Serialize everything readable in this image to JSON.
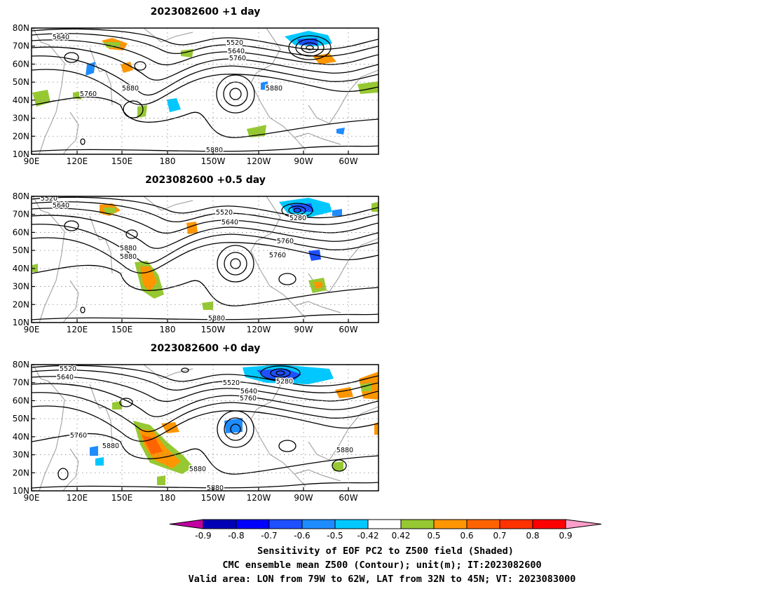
{
  "panels": [
    {
      "title": "2023082600  +1 day",
      "contour_labels": [
        "5640",
        "5520",
        "5640",
        "5760",
        "5760",
        "5880",
        "5880",
        "5880"
      ]
    },
    {
      "title": "2023082600  +0.5 day",
      "contour_labels": [
        "5520",
        "5640",
        "5520",
        "5640",
        "5280",
        "5760",
        "5880",
        "5760",
        "5880",
        "5880"
      ]
    },
    {
      "title": "2023082600  +0 day",
      "contour_labels": [
        "5520",
        "5640",
        "5520",
        "5280",
        "5640",
        "5760",
        "5760",
        "5880",
        "5880",
        "5880",
        "5880"
      ]
    }
  ],
  "axes": {
    "lat_labels": [
      "80N",
      "70N",
      "60N",
      "50N",
      "40N",
      "30N",
      "20N",
      "10N"
    ],
    "lon_labels": [
      "90E",
      "120E",
      "150E",
      "180",
      "150W",
      "120W",
      "90W",
      "60W"
    ]
  },
  "colorbar": {
    "tick_labels": [
      "-0.9",
      "-0.8",
      "-0.7",
      "-0.6",
      "-0.5",
      "-0.42",
      "0.42",
      "0.5",
      "0.6",
      "0.7",
      "0.8",
      "0.9"
    ],
    "colors": [
      "#c000a0",
      "#0000b4",
      "#0000ff",
      "#1e50ff",
      "#1e8cff",
      "#00c8ff",
      "#ffffff",
      "#96c832",
      "#ff9600",
      "#ff6400",
      "#ff3200",
      "#ff0000",
      "#ff9ecb"
    ]
  },
  "caption": {
    "line1": "Sensitivity of EOF PC2 to Z500 field (Shaded)",
    "line2": "CMC ensemble mean Z500 (Contour); unit(m); IT:2023082600",
    "line3": "Valid area: LON from 79W to 62W, LAT from 32N to 45N; VT: 2023083000"
  }
}
